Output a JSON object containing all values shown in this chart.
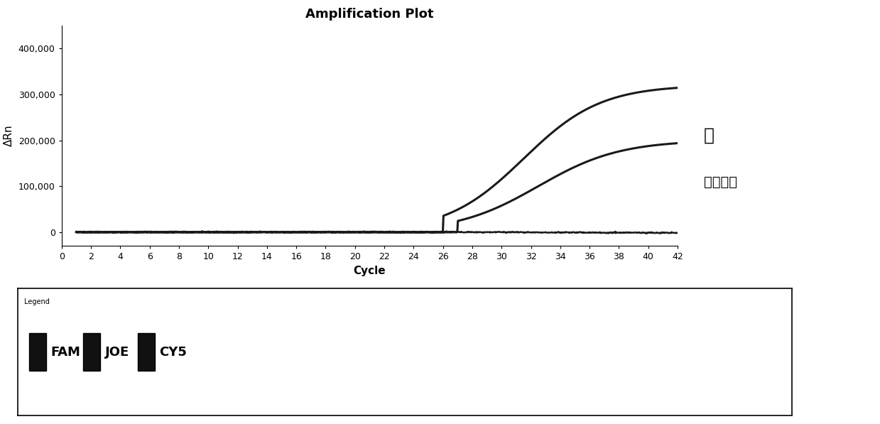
{
  "title": "Amplification Plot",
  "xlabel": "Cycle",
  "ylabel": "ΔRn",
  "xlim": [
    0,
    42
  ],
  "ylim": [
    -30000,
    450000
  ],
  "yticks": [
    0,
    100000,
    200000,
    300000,
    400000
  ],
  "ytick_labels": [
    "0",
    "100,000",
    "200,000",
    "300,000",
    "400,000"
  ],
  "xticks": [
    0,
    2,
    4,
    6,
    8,
    10,
    12,
    14,
    16,
    18,
    20,
    22,
    24,
    26,
    28,
    30,
    32,
    34,
    36,
    38,
    40,
    42
  ],
  "annotation_lu": "鹿",
  "annotation_neibiao": "内标质控",
  "line_color": "#1a1a1a",
  "legend_items": [
    "FAM",
    "JOE",
    "CY5"
  ],
  "legend_colors": [
    "#111111",
    "#111111",
    "#111111"
  ],
  "background_color": "#ffffff",
  "title_fontsize": 13,
  "axis_fontsize": 11,
  "tick_fontsize": 9
}
